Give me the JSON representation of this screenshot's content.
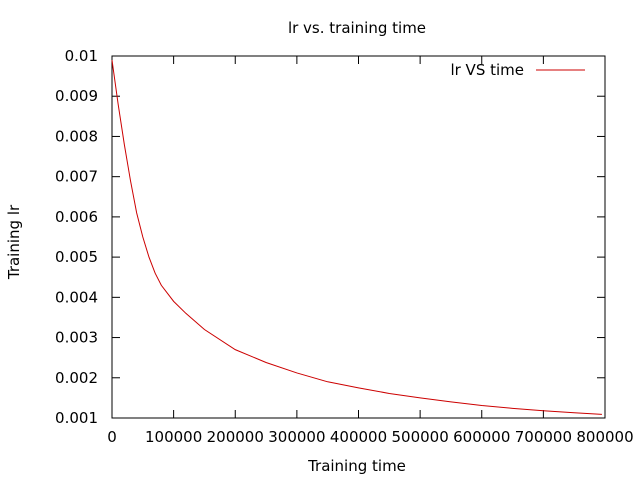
{
  "chart_data": {
    "type": "line",
    "title": "lr vs. training time",
    "xlabel": "Training time",
    "ylabel": "Training lr",
    "xlim": [
      0,
      800000
    ],
    "ylim": [
      0.001,
      0.01
    ],
    "x_ticks": [
      0,
      100000,
      200000,
      300000,
      400000,
      500000,
      600000,
      700000,
      800000
    ],
    "x_tick_labels": [
      "0",
      "100000",
      "200000",
      "300000",
      "400000",
      "500000",
      "600000",
      "700000",
      "800000"
    ],
    "y_ticks": [
      0.001,
      0.002,
      0.003,
      0.004,
      0.005,
      0.006,
      0.007,
      0.008,
      0.009,
      0.01
    ],
    "y_tick_labels": [
      "0.001",
      "0.002",
      "0.003",
      "0.004",
      "0.005",
      "0.006",
      "0.007",
      "0.008",
      "0.009",
      "0.01"
    ],
    "grid": false,
    "legend": "top-right",
    "series": [
      {
        "name": "lr VS time",
        "color": "#cc0000",
        "x": [
          0,
          10000,
          20000,
          30000,
          40000,
          50000,
          60000,
          70000,
          80000,
          100000,
          120000,
          150000,
          200000,
          250000,
          300000,
          350000,
          400000,
          450000,
          500000,
          550000,
          600000,
          650000,
          700000,
          750000,
          795000
        ],
        "y": [
          0.0099,
          0.0088,
          0.0078,
          0.0069,
          0.0061,
          0.0055,
          0.005,
          0.0046,
          0.0043,
          0.0039,
          0.0036,
          0.0032,
          0.0027,
          0.00238,
          0.00212,
          0.0019,
          0.00175,
          0.00161,
          0.0015,
          0.0014,
          0.00131,
          0.00124,
          0.00118,
          0.00113,
          0.00109
        ]
      }
    ]
  }
}
